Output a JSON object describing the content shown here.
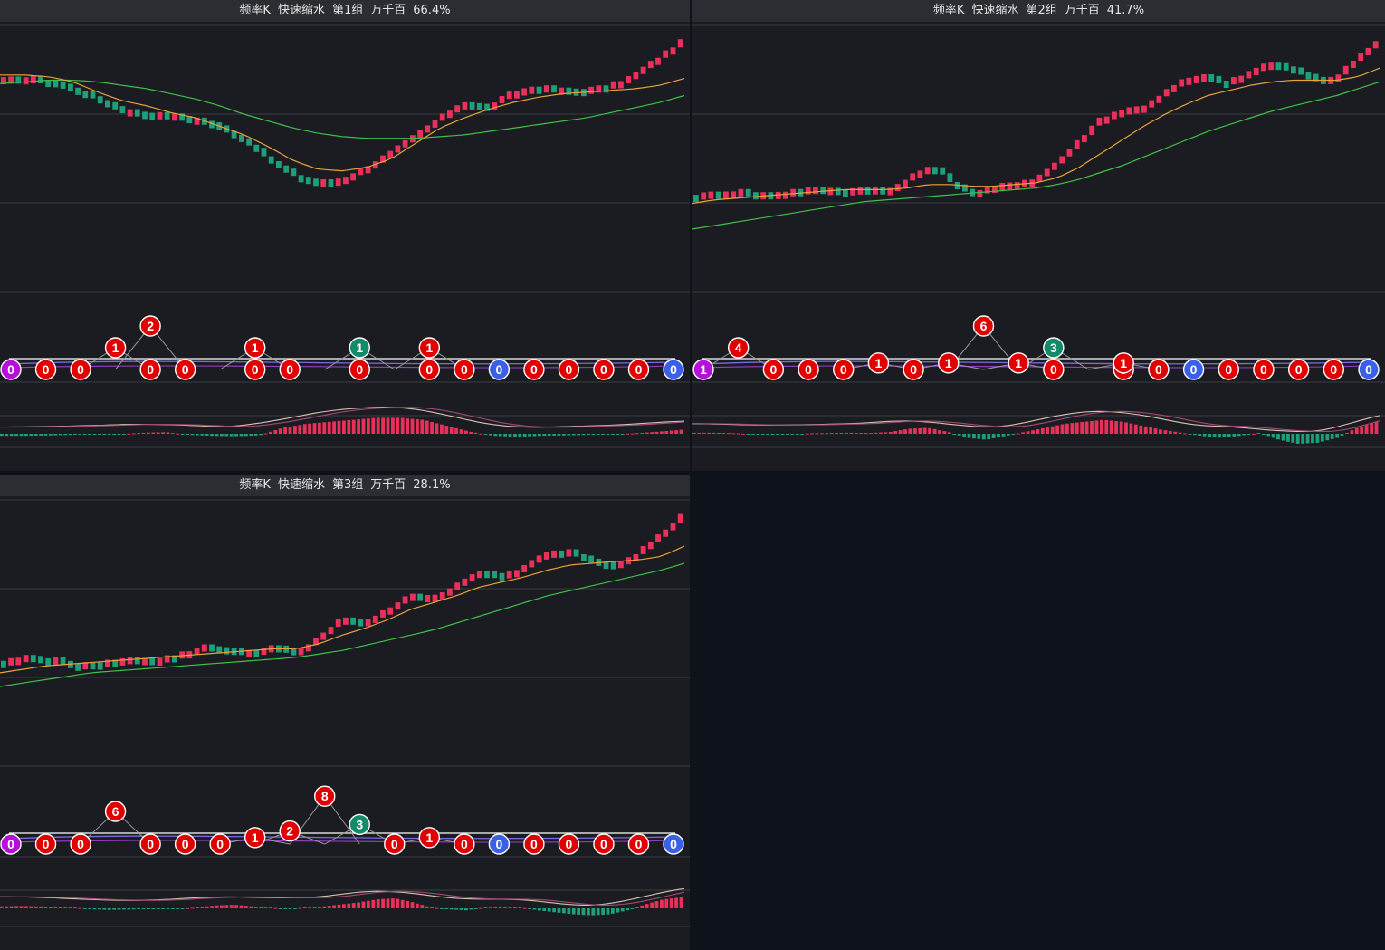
{
  "panels": [
    {
      "title": {
        "name": "频率K",
        "mode": "快速缩水",
        "group": "第1组",
        "unit": "万千百",
        "percent": "66.4%"
      },
      "kline": {
        "trend": [
          0.78,
          0.79,
          0.77,
          0.72,
          0.66,
          0.6,
          0.58,
          0.57,
          0.55,
          0.5,
          0.42,
          0.3,
          0.22,
          0.18,
          0.2,
          0.27,
          0.35,
          0.45,
          0.55,
          0.65,
          0.62,
          0.7,
          0.74,
          0.72,
          0.72,
          0.74,
          0.8,
          0.9,
          1.0
        ],
        "ma_fast": [
          0.8,
          0.8,
          0.79,
          0.76,
          0.7,
          0.65,
          0.62,
          0.58,
          0.55,
          0.5,
          0.45,
          0.38,
          0.3,
          0.25,
          0.24,
          0.26,
          0.31,
          0.4,
          0.49,
          0.55,
          0.6,
          0.64,
          0.67,
          0.69,
          0.7,
          0.71,
          0.72,
          0.74,
          0.78
        ],
        "ma_slow": [
          0.75,
          0.76,
          0.77,
          0.77,
          0.76,
          0.74,
          0.72,
          0.69,
          0.66,
          0.62,
          0.57,
          0.53,
          0.49,
          0.46,
          0.44,
          0.43,
          0.43,
          0.43,
          0.44,
          0.45,
          0.47,
          0.49,
          0.51,
          0.53,
          0.55,
          0.58,
          0.61,
          0.64,
          0.68
        ]
      },
      "badges": {
        "baseline": [
          "0",
          "0",
          "0",
          "",
          "0",
          "0",
          "",
          "0",
          "0",
          "",
          "0",
          "",
          "0",
          "0",
          "0",
          "0",
          "0",
          "0",
          "0",
          "0"
        ],
        "raised": [
          {
            "slot": 3,
            "value": "1",
            "level": 1,
            "color": "red"
          },
          {
            "slot": 4,
            "value": "2",
            "level": 2,
            "color": "red"
          },
          {
            "slot": 7,
            "value": "1",
            "level": 1,
            "color": "red"
          },
          {
            "slot": 10,
            "value": "1",
            "level": 1,
            "color": "teal"
          },
          {
            "slot": 12,
            "value": "1",
            "level": 1,
            "color": "red"
          }
        ],
        "first_color": "purple",
        "blue_slots": [
          15,
          20
        ]
      },
      "macd": {
        "hist": [
          -0.1,
          -0.1,
          -0.08,
          -0.05,
          -0.03,
          -0.02,
          0.05,
          0.08,
          -0.05,
          -0.1,
          -0.12,
          -0.08,
          0.3,
          0.5,
          0.6,
          0.7,
          0.8,
          0.8,
          0.7,
          0.4,
          0.1,
          -0.1,
          -0.15,
          -0.1,
          -0.08,
          -0.05,
          -0.02,
          0.02,
          0.1,
          0.2
        ]
      }
    },
    {
      "title": {
        "name": "频率K",
        "mode": "快速缩水",
        "group": "第2组",
        "unit": "万千百",
        "percent": "41.7%"
      },
      "kline": {
        "trend": [
          0.1,
          0.12,
          0.13,
          0.11,
          0.12,
          0.14,
          0.14,
          0.13,
          0.15,
          0.13,
          0.2,
          0.28,
          0.18,
          0.12,
          0.15,
          0.18,
          0.2,
          0.3,
          0.42,
          0.55,
          0.6,
          0.62,
          0.7,
          0.78,
          0.8,
          0.76,
          0.82,
          0.88,
          0.84,
          0.8,
          0.78,
          0.9,
          1.0
        ],
        "ma_fast": [
          0.05,
          0.07,
          0.08,
          0.09,
          0.1,
          0.11,
          0.12,
          0.13,
          0.13,
          0.13,
          0.14,
          0.16,
          0.16,
          0.15,
          0.15,
          0.16,
          0.17,
          0.2,
          0.26,
          0.34,
          0.42,
          0.5,
          0.57,
          0.63,
          0.68,
          0.71,
          0.74,
          0.76,
          0.77,
          0.77,
          0.77,
          0.79,
          0.84
        ],
        "ma_slow": [
          -0.1,
          -0.08,
          -0.06,
          -0.04,
          -0.02,
          0.0,
          0.02,
          0.04,
          0.06,
          0.07,
          0.08,
          0.09,
          0.1,
          0.11,
          0.12,
          0.13,
          0.14,
          0.16,
          0.19,
          0.23,
          0.27,
          0.32,
          0.37,
          0.42,
          0.47,
          0.51,
          0.55,
          0.59,
          0.62,
          0.65,
          0.68,
          0.72,
          0.76
        ]
      },
      "badges": {
        "baseline": [
          "1",
          "",
          "0",
          "0",
          "0",
          "",
          "0",
          "",
          "",
          "",
          "0",
          "",
          "0",
          "0",
          "0",
          "0",
          "0",
          "0",
          "0",
          "0"
        ],
        "raised": [
          {
            "slot": 1,
            "value": "4",
            "level": 1,
            "color": "red"
          },
          {
            "slot": 5,
            "value": "1",
            "level": 0.3,
            "color": "red"
          },
          {
            "slot": 7,
            "value": "1",
            "level": 0.3,
            "color": "red"
          },
          {
            "slot": 8,
            "value": "6",
            "level": 2,
            "color": "red"
          },
          {
            "slot": 9,
            "value": "1",
            "level": 0.3,
            "color": "red"
          },
          {
            "slot": 10,
            "value": "3",
            "level": 1,
            "color": "teal"
          },
          {
            "slot": 12,
            "value": "1",
            "level": 0.3,
            "color": "red"
          }
        ],
        "first_color": "purple",
        "blue_slots": [
          15,
          20
        ]
      },
      "macd": {
        "hist": [
          0.05,
          0.05,
          0.03,
          -0.02,
          -0.05,
          -0.03,
          0.02,
          0.04,
          0.05,
          0.04,
          0.08,
          0.25,
          0.3,
          0.1,
          -0.2,
          -0.3,
          -0.1,
          0.1,
          0.3,
          0.5,
          0.6,
          0.7,
          0.6,
          0.4,
          0.2,
          0.05,
          -0.1,
          -0.2,
          -0.1,
          0.05,
          -0.3,
          -0.5,
          -0.45,
          -0.2,
          0.3,
          0.6
        ]
      }
    },
    {
      "title": {
        "name": "频率K",
        "mode": "快速缩水",
        "group": "第3组",
        "unit": "万千百",
        "percent": "28.1%"
      },
      "kline": {
        "trend": [
          0.15,
          0.18,
          0.17,
          0.14,
          0.13,
          0.16,
          0.17,
          0.17,
          0.2,
          0.25,
          0.22,
          0.21,
          0.24,
          0.2,
          0.3,
          0.4,
          0.38,
          0.45,
          0.55,
          0.52,
          0.6,
          0.68,
          0.65,
          0.7,
          0.78,
          0.8,
          0.75,
          0.72,
          0.78,
          0.88,
          1.0
        ],
        "ma_fast": [
          0.08,
          0.1,
          0.12,
          0.13,
          0.14,
          0.15,
          0.16,
          0.17,
          0.18,
          0.19,
          0.2,
          0.21,
          0.22,
          0.22,
          0.25,
          0.3,
          0.34,
          0.39,
          0.45,
          0.49,
          0.53,
          0.58,
          0.61,
          0.64,
          0.68,
          0.71,
          0.72,
          0.73,
          0.74,
          0.76,
          0.82
        ],
        "ma_slow": [
          0.0,
          0.02,
          0.04,
          0.06,
          0.08,
          0.09,
          0.1,
          0.11,
          0.12,
          0.13,
          0.14,
          0.15,
          0.16,
          0.17,
          0.19,
          0.21,
          0.24,
          0.27,
          0.3,
          0.33,
          0.37,
          0.41,
          0.45,
          0.49,
          0.53,
          0.56,
          0.59,
          0.62,
          0.65,
          0.68,
          0.72
        ]
      },
      "badges": {
        "baseline": [
          "0",
          "0",
          "0",
          "",
          "0",
          "0",
          "0",
          "",
          "",
          "",
          "",
          "0",
          "",
          "0",
          "0",
          "0",
          "0",
          "0",
          "0",
          "0"
        ],
        "raised": [
          {
            "slot": 3,
            "value": "6",
            "level": 1.5,
            "color": "red"
          },
          {
            "slot": 7,
            "value": "1",
            "level": 0.3,
            "color": "red"
          },
          {
            "slot": 8,
            "value": "2",
            "level": 0.6,
            "color": "red"
          },
          {
            "slot": 9,
            "value": "8",
            "level": 2.2,
            "color": "red"
          },
          {
            "slot": 10,
            "value": "3",
            "level": 0.9,
            "color": "teal"
          },
          {
            "slot": 12,
            "value": "1",
            "level": 0.3,
            "color": "red"
          }
        ],
        "first_color": "purple",
        "blue_slots": [
          15,
          20
        ]
      },
      "macd": {
        "hist": [
          0.1,
          0.12,
          0.1,
          0.08,
          0.05,
          -0.05,
          -0.08,
          -0.06,
          -0.04,
          -0.03,
          -0.02,
          0.05,
          0.15,
          0.18,
          0.1,
          0.05,
          -0.05,
          0.05,
          0.1,
          0.2,
          0.3,
          0.45,
          0.5,
          0.3,
          0.05,
          -0.05,
          -0.1,
          0.05,
          0.1,
          0.05,
          -0.1,
          -0.2,
          -0.3,
          -0.35,
          -0.3,
          -0.1,
          0.2,
          0.45,
          0.55
        ]
      }
    }
  ],
  "colors": {
    "up": "#e8305a",
    "down": "#1e9f7a",
    "ma_fast": "#e7a23a",
    "ma_slow": "#3fbf4a",
    "grid": "#3a3b40",
    "badge_red": "#e00000",
    "badge_teal": "#138a6a",
    "badge_blue": "#3a5fe8",
    "badge_purple": "#b410d8",
    "macd_dif": "#d9c2b0",
    "macd_dea": "#a04a7a"
  }
}
